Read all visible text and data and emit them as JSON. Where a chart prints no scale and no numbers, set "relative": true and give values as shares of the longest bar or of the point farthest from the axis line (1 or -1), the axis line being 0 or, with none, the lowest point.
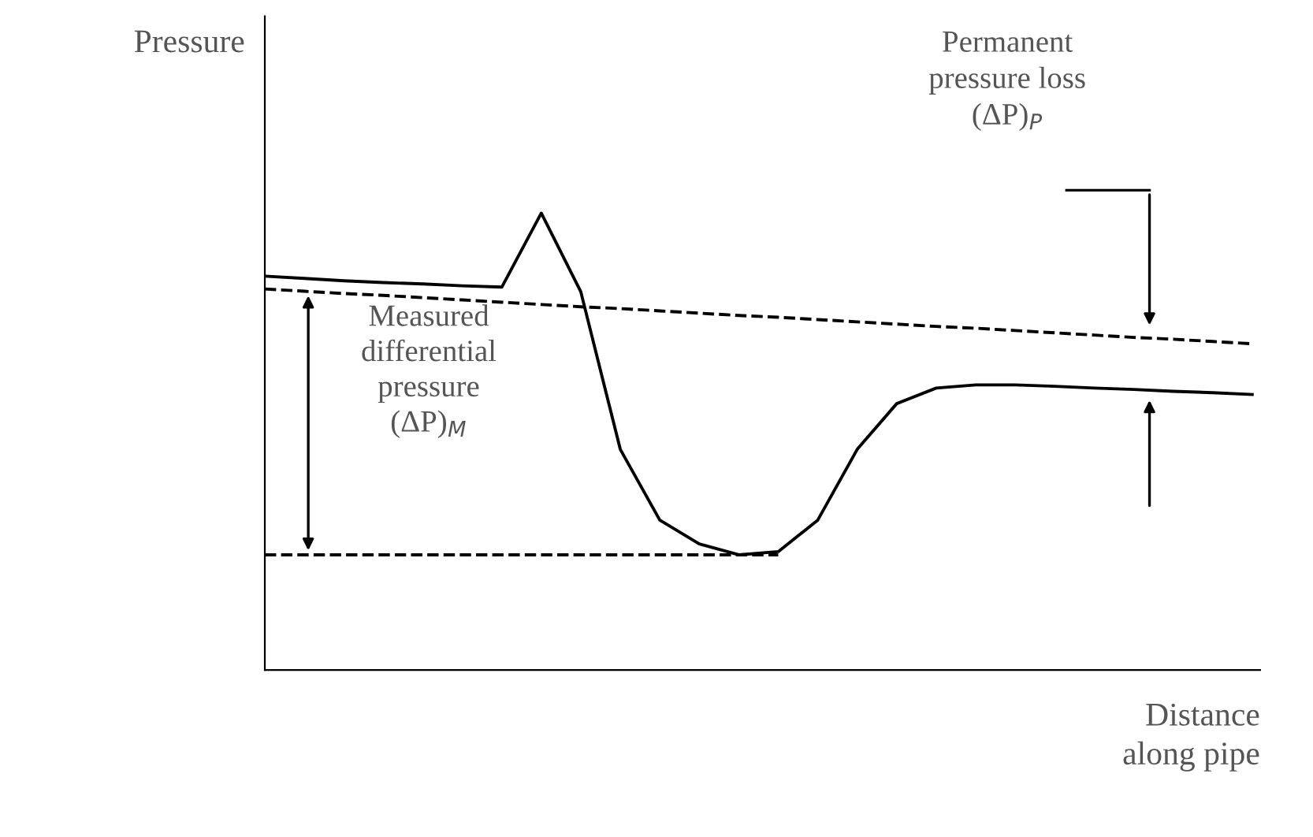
{
  "chart_data": {
    "type": "line",
    "relative": true,
    "xlabel": "Distance\nalong pipe",
    "ylabel": "Pressure",
    "categories": [
      null,
      null,
      null,
      null,
      null,
      null,
      null,
      null,
      null,
      null,
      null,
      null,
      null,
      null,
      null,
      null,
      null,
      null,
      null,
      null,
      null,
      null,
      null,
      null,
      null,
      null
    ],
    "series": [
      {
        "color": "#000000",
        "line_style": "solid",
        "values": [
          0.862,
          0.857,
          0.852,
          0.848,
          0.845,
          0.841,
          0.838,
          1,
          0.828,
          0.483,
          0.328,
          0.276,
          0.252,
          0.259,
          0.328,
          0.483,
          0.583,
          0.617,
          0.624,
          0.624,
          0.621,
          0.617,
          0.614,
          0.61,
          0.607,
          0.603
        ]
      },
      {
        "color": "#000000",
        "line_style": "dashed",
        "values": [
          0.834,
          0.829,
          0.824,
          0.82,
          0.815,
          0.81,
          0.805,
          0.8,
          0.795,
          0.791,
          0.786,
          0.781,
          0.776,
          0.772,
          0.767,
          0.762,
          0.757,
          0.752,
          0.748,
          0.743,
          0.738,
          0.733,
          0.728,
          0.724,
          0.719,
          0.714
        ]
      },
      {
        "color": "#000000",
        "line_style": "dashed",
        "values": [
          0.252,
          0.252,
          0.252,
          0.252,
          0.252,
          0.252,
          0.252,
          0.252,
          0.252,
          0.252,
          0.252,
          0.252,
          0.252,
          0.252,
          null,
          null,
          null,
          null,
          null,
          null,
          null,
          null,
          null,
          null,
          null,
          null
        ]
      }
    ],
    "annotations": [
      "Permanent\npressure loss\n(ΔP)$_{P}$",
      "Measured\ndifferential\npressure\n(ΔP)$_{M}$"
    ]
  }
}
